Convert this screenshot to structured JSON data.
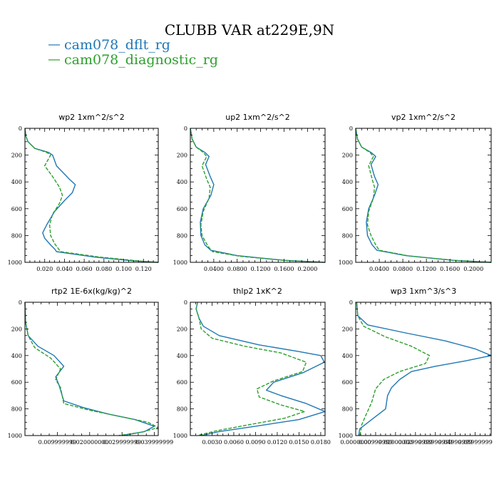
{
  "figure": {
    "title": "CLUBB VAR at229E,9N"
  },
  "legend": [
    {
      "label": "cam078_dflt_rg",
      "color": "#1f77b4"
    },
    {
      "label": "cam078_diagnostic_rg",
      "color": "#2ca02c"
    }
  ],
  "chart_data": [
    {
      "type": "line",
      "title": "wp2  1xm^2/s^2",
      "xlim": [
        0,
        0.135
      ],
      "ylim": [
        1000,
        0
      ],
      "xticks": [
        0.02,
        0.04,
        0.06,
        0.08,
        0.1,
        0.12
      ],
      "xticklabels": [
        "0.020",
        "0.040",
        "0.060",
        "0.080",
        "0.100",
        "0.120"
      ],
      "yticks": [
        0,
        200,
        400,
        600,
        800,
        1000
      ],
      "yticklabels": [
        "0",
        "200",
        "400",
        "600",
        "800",
        "1000"
      ],
      "series": [
        {
          "name": "cam078_dflt_rg",
          "color": "#1f77b4",
          "dash": "",
          "x": [
            0.0,
            0.001,
            0.003,
            0.01,
            0.024,
            0.028,
            0.032,
            0.045,
            0.051,
            0.048,
            0.04,
            0.03,
            0.022,
            0.018,
            0.02,
            0.026,
            0.03,
            0.032,
            0.07,
            0.11,
            0.135
          ],
          "y": [
            0,
            60,
            100,
            150,
            180,
            200,
            280,
            380,
            420,
            480,
            540,
            620,
            720,
            780,
            820,
            870,
            900,
            920,
            960,
            990,
            1000
          ]
        },
        {
          "name": "cam078_diagnostic_rg",
          "color": "#2ca02c",
          "dash": "5,2",
          "x": [
            0.0,
            0.001,
            0.003,
            0.01,
            0.022,
            0.026,
            0.02,
            0.028,
            0.035,
            0.038,
            0.035,
            0.028,
            0.025,
            0.026,
            0.03,
            0.034,
            0.036,
            0.075,
            0.115,
            0.135
          ],
          "y": [
            0,
            60,
            100,
            150,
            180,
            200,
            280,
            360,
            440,
            500,
            560,
            640,
            720,
            800,
            860,
            900,
            920,
            960,
            990,
            1000
          ]
        }
      ]
    },
    {
      "type": "line",
      "title": "up2  1xm^2/s^2",
      "xlim": [
        0,
        0.23
      ],
      "ylim": [
        1000,
        0
      ],
      "xticks": [
        0.04,
        0.08,
        0.12,
        0.16,
        0.2
      ],
      "xticklabels": [
        "0.0400",
        "0.0800",
        "0.1200",
        "0.1600",
        "0.2000"
      ],
      "yticks": [
        0,
        200,
        400,
        600,
        800,
        1000
      ],
      "yticklabels": [
        "0",
        "200",
        "400",
        "600",
        "800",
        "1000"
      ],
      "series": [
        {
          "name": "cam078_dflt_rg",
          "color": "#1f77b4",
          "dash": "",
          "x": [
            0.0,
            0.003,
            0.01,
            0.025,
            0.032,
            0.026,
            0.034,
            0.04,
            0.035,
            0.022,
            0.017,
            0.018,
            0.025,
            0.035,
            0.08,
            0.16,
            0.23
          ],
          "y": [
            0,
            80,
            140,
            180,
            210,
            270,
            360,
            420,
            500,
            600,
            700,
            800,
            870,
            910,
            950,
            985,
            1000
          ]
        },
        {
          "name": "cam078_diagnostic_rg",
          "color": "#2ca02c",
          "dash": "5,2",
          "x": [
            0.0,
            0.003,
            0.01,
            0.022,
            0.028,
            0.02,
            0.028,
            0.034,
            0.032,
            0.022,
            0.018,
            0.02,
            0.03,
            0.038,
            0.085,
            0.165,
            0.23
          ],
          "y": [
            0,
            80,
            140,
            180,
            210,
            280,
            380,
            440,
            520,
            620,
            720,
            800,
            880,
            920,
            955,
            987,
            1000
          ]
        }
      ]
    },
    {
      "type": "line",
      "title": "vp2  1xm^2/s^2",
      "xlim": [
        0,
        0.23
      ],
      "ylim": [
        1000,
        0
      ],
      "xticks": [
        0.04,
        0.08,
        0.12,
        0.16,
        0.2
      ],
      "xticklabels": [
        "0.0400",
        "0.0800",
        "0.1200",
        "0.1600",
        "0.2000"
      ],
      "yticks": [
        0,
        200,
        400,
        600,
        800,
        1000
      ],
      "yticklabels": [
        "0",
        "200",
        "400",
        "600",
        "800",
        "1000"
      ],
      "series": [
        {
          "name": "cam078_dflt_rg",
          "color": "#1f77b4",
          "dash": "",
          "x": [
            0.0,
            0.003,
            0.01,
            0.026,
            0.034,
            0.026,
            0.032,
            0.038,
            0.032,
            0.022,
            0.018,
            0.02,
            0.028,
            0.036,
            0.085,
            0.165,
            0.23
          ],
          "y": [
            0,
            80,
            140,
            180,
            210,
            270,
            360,
            420,
            500,
            600,
            700,
            800,
            870,
            910,
            950,
            985,
            1000
          ]
        },
        {
          "name": "cam078_diagnostic_rg",
          "color": "#2ca02c",
          "dash": "5,2",
          "x": [
            0.0,
            0.003,
            0.01,
            0.024,
            0.03,
            0.022,
            0.028,
            0.032,
            0.03,
            0.022,
            0.02,
            0.026,
            0.034,
            0.04,
            0.09,
            0.17,
            0.23
          ],
          "y": [
            0,
            80,
            140,
            180,
            210,
            280,
            380,
            440,
            520,
            620,
            720,
            800,
            870,
            910,
            952,
            986,
            1000
          ]
        }
      ]
    },
    {
      "type": "line",
      "title": "rtp2  1E-6x(kg/kg)^2",
      "xlim": [
        0,
        0.0412
      ],
      "ylim": [
        1000,
        0
      ],
      "xticks": [
        0.01,
        0.02,
        0.03,
        0.04
      ],
      "xticklabels": [
        "0.009999999",
        "0.020000000",
        "0.029999999",
        "0.039999999"
      ],
      "yticks": [
        0,
        200,
        400,
        600,
        800,
        1000
      ],
      "yticklabels": [
        "0",
        "200",
        "400",
        "600",
        "800",
        "1000"
      ],
      "series": [
        {
          "name": "cam078_dflt_rg",
          "color": "#1f77b4",
          "dash": "",
          "x": [
            0.0,
            0.0002,
            0.001,
            0.004,
            0.009,
            0.012,
            0.0095,
            0.0105,
            0.012,
            0.018,
            0.026,
            0.034,
            0.04,
            0.037,
            0.03
          ],
          "y": [
            0,
            150,
            250,
            330,
            400,
            480,
            560,
            620,
            740,
            790,
            840,
            880,
            930,
            970,
            1000
          ]
        },
        {
          "name": "cam078_diagnostic_rg",
          "color": "#2ca02c",
          "dash": "5,2",
          "x": [
            0.0,
            0.0002,
            0.001,
            0.003,
            0.008,
            0.011,
            0.0095,
            0.011,
            0.012,
            0.02,
            0.03,
            0.038,
            0.0412,
            0.036,
            0.029
          ],
          "y": [
            0,
            150,
            250,
            340,
            420,
            500,
            580,
            640,
            760,
            810,
            860,
            900,
            940,
            975,
            1000
          ]
        }
      ]
    },
    {
      "type": "line",
      "title": "thlp2  1xK^2",
      "xlim": [
        0,
        0.0186
      ],
      "ylim": [
        1000,
        0
      ],
      "xticks": [
        0.003,
        0.006,
        0.009,
        0.012,
        0.015,
        0.018
      ],
      "xticklabels": [
        "0.0030",
        "0.0060",
        "0.0090",
        "0.0120",
        "0.0150",
        "0.0180"
      ],
      "yticks": [
        0,
        200,
        400,
        600,
        800,
        1000
      ],
      "yticklabels": [
        "0",
        "200",
        "400",
        "600",
        "800",
        "1000"
      ],
      "series": [
        {
          "name": "cam078_dflt_rg",
          "color": "#1f77b4",
          "dash": "",
          "x": [
            0.001,
            0.0008,
            0.0012,
            0.0018,
            0.004,
            0.0095,
            0.015,
            0.018,
            0.0185,
            0.0155,
            0.0115,
            0.0105,
            0.0125,
            0.016,
            0.0186,
            0.015,
            0.009,
            0.004,
            0.0015
          ],
          "y": [
            0,
            50,
            120,
            180,
            250,
            320,
            370,
            400,
            450,
            530,
            600,
            660,
            700,
            760,
            820,
            880,
            930,
            970,
            1000
          ]
        },
        {
          "name": "cam078_diagnostic_rg",
          "color": "#2ca02c",
          "dash": "5,2",
          "x": [
            0.001,
            0.0008,
            0.0012,
            0.0015,
            0.003,
            0.0075,
            0.0125,
            0.016,
            0.0155,
            0.0115,
            0.0092,
            0.0095,
            0.0125,
            0.0158,
            0.013,
            0.008,
            0.0035,
            0.001
          ],
          "y": [
            0,
            50,
            120,
            200,
            270,
            330,
            380,
            450,
            520,
            590,
            650,
            710,
            770,
            820,
            870,
            920,
            965,
            1000
          ]
        }
      ]
    },
    {
      "type": "line",
      "title": "wp3  1xm^3/s^3",
      "xlim": [
        0,
        0.068
      ],
      "ylim": [
        1000,
        0
      ],
      "xticks": [
        0.0,
        0.01,
        0.02,
        0.03,
        0.04,
        0.05,
        0.06
      ],
      "xticklabels": [
        "0.0000000",
        "0.00999999",
        "0.02000000",
        "0.02999999",
        "0.03999999",
        "0.04999999",
        "0.05999999"
      ],
      "yticks": [
        0,
        200,
        400,
        600,
        800,
        1000
      ],
      "yticklabels": [
        "0",
        "200",
        "400",
        "600",
        "800",
        "1000"
      ],
      "series": [
        {
          "name": "cam078_dflt_rg",
          "color": "#1f77b4",
          "dash": "",
          "x": [
            0.0005,
            0.001,
            0.006,
            0.025,
            0.045,
            0.06,
            0.068,
            0.055,
            0.04,
            0.028,
            0.022,
            0.018,
            0.016,
            0.015,
            0.008,
            0.002,
            0.0015
          ],
          "y": [
            0,
            100,
            170,
            230,
            290,
            350,
            400,
            440,
            480,
            520,
            580,
            640,
            700,
            800,
            880,
            950,
            1000
          ]
        },
        {
          "name": "cam078_diagnostic_rg",
          "color": "#2ca02c",
          "dash": "5,2",
          "x": [
            0.0005,
            0.001,
            0.004,
            0.015,
            0.028,
            0.037,
            0.035,
            0.022,
            0.014,
            0.01,
            0.008,
            0.005,
            0.003,
            0.0025,
            0.002
          ],
          "y": [
            0,
            100,
            180,
            260,
            330,
            400,
            460,
            520,
            580,
            650,
            750,
            850,
            920,
            970,
            1000
          ]
        }
      ]
    }
  ]
}
